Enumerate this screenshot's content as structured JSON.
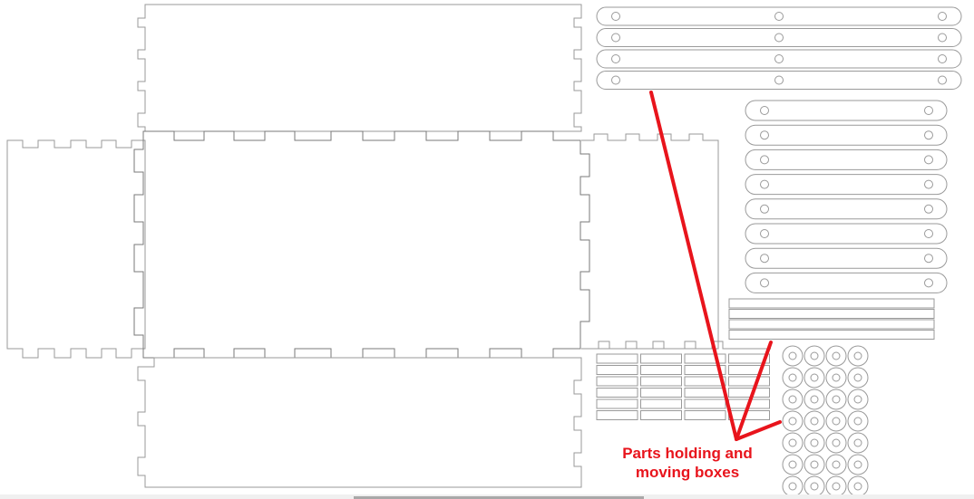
{
  "annotation": {
    "label": "Parts holding and\nmoving boxes",
    "color": "#e8141c"
  },
  "sheet": {
    "line_color": "#9a9a9a",
    "background": "#ffffff"
  },
  "parts": {
    "long_bars": 4,
    "short_bars": 8,
    "thin_strips": 4,
    "small_tab_grid_rows": 6,
    "small_tab_grid_cols": 4,
    "washer_rows": 7,
    "washer_cols": 4
  }
}
